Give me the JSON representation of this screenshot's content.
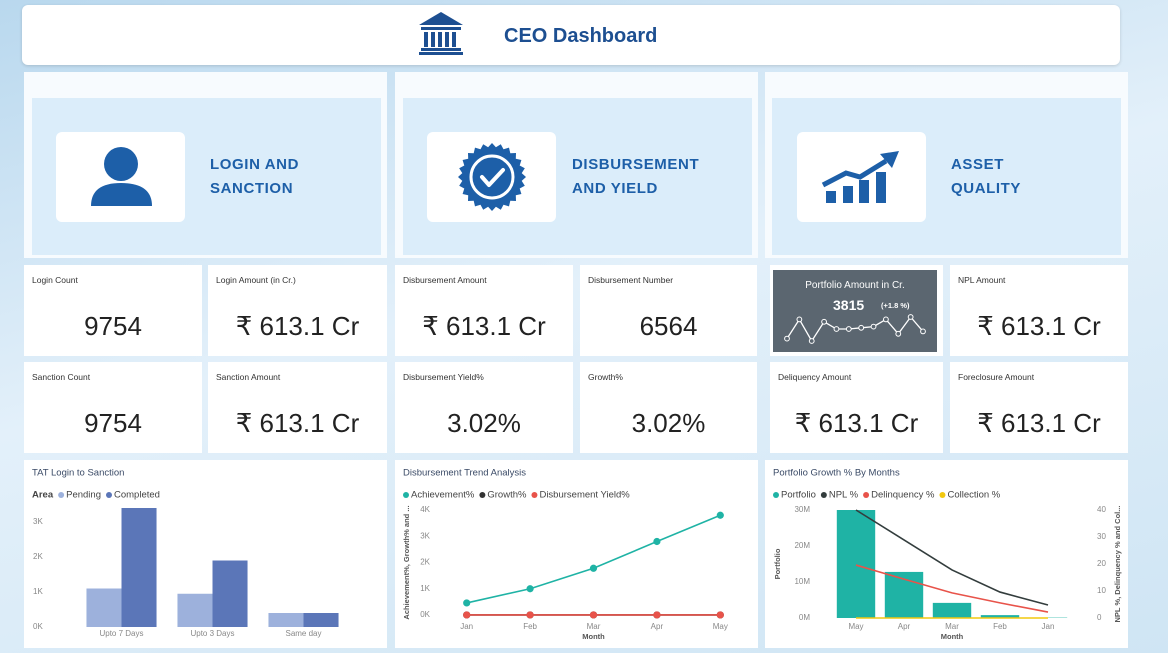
{
  "header": {
    "title": "CEO Dashboard"
  },
  "sections": [
    {
      "label": [
        "LOGIN AND",
        "SANCTION"
      ]
    },
    {
      "label": [
        "DISBURSEMENT",
        "AND YIELD"
      ]
    },
    {
      "label": [
        "ASSET",
        "QUALITY"
      ]
    }
  ],
  "kpis": [
    {
      "title": "Login Count",
      "value": "9754"
    },
    {
      "title": "Login Amount (in Cr.)",
      "value": "₹ 613.1 Cr"
    },
    {
      "title": "Disbursement Amount",
      "value": "₹ 613.1 Cr"
    },
    {
      "title": "Disbursement Number",
      "value": "6564"
    },
    {
      "title": "Portfolio Amount in Cr.",
      "value": "3815",
      "change": "(+1.8 %)",
      "sparkline": [
        1,
        9,
        0,
        8,
        5,
        5,
        5.5,
        6,
        9,
        3,
        10,
        4
      ]
    },
    {
      "title": "NPL Amount",
      "value": "₹ 613.1 Cr"
    },
    {
      "title": "Sanction Count",
      "value": "9754"
    },
    {
      "title": "Sanction Amount",
      "value": "₹ 613.1 Cr"
    },
    {
      "title": "Disbursement Yield%",
      "value": "3.02%"
    },
    {
      "title": "Growth%",
      "value": "3.02%"
    },
    {
      "title": "Deliquency Amount",
      "value": "₹ 613.1 Cr"
    },
    {
      "title": "Foreclosure Amount",
      "value": "₹ 613.1 Cr"
    }
  ],
  "chart_data": [
    {
      "type": "bar",
      "title": "TAT Login to Sanction",
      "legend_title": "Area",
      "grid": false,
      "categories": [
        "Upto 7 Days",
        "Upto 3 Days",
        "Same day"
      ],
      "series": [
        {
          "name": "Pending",
          "color": "#9db1dc",
          "values": [
            1100,
            950,
            400
          ]
        },
        {
          "name": "Completed",
          "color": "#5b76b8",
          "values": [
            3400,
            1900,
            400
          ]
        }
      ],
      "ylim": [
        0,
        3600
      ],
      "yticks": [
        {
          "value": 0,
          "label": "0K"
        },
        {
          "value": 1000,
          "label": "1K"
        },
        {
          "value": 2000,
          "label": "2K"
        },
        {
          "value": 3000,
          "label": "3K"
        }
      ]
    },
    {
      "type": "line",
      "title": "Disbursement Trend Analysis",
      "grid": false,
      "x_label": "Month",
      "y_label": "Achievement%, Growth% and ...",
      "categories": [
        "Jan",
        "Feb",
        "Mar",
        "Apr",
        "May"
      ],
      "series": [
        {
          "name": "Achievement%",
          "color": "#1fb3a5",
          "markers": true,
          "values": [
            460,
            1000,
            1780,
            2800,
            3800
          ]
        },
        {
          "name": "Growth%",
          "color": "#333333",
          "markers": true,
          "values": [
            3.02,
            3.02,
            3.02,
            3.02,
            3.02
          ]
        },
        {
          "name": "Disbursement Yield%",
          "color": "#e8534a",
          "markers": true,
          "values": [
            3.02,
            3.02,
            3.02,
            3.02,
            3.02
          ]
        }
      ],
      "ylim": [
        0,
        4000
      ],
      "yticks": [
        {
          "value": 0,
          "label": "0K"
        },
        {
          "value": 1000,
          "label": "1K"
        },
        {
          "value": 2000,
          "label": "2K"
        },
        {
          "value": 3000,
          "label": "3K"
        },
        {
          "value": 4000,
          "label": "4K"
        }
      ]
    },
    {
      "type": "combo",
      "title": "Portfolio Growth % By Months",
      "grid": false,
      "x_label": "Month",
      "y_label": "Portfolio",
      "y2_label": "NPL %, Delinquency % and Col...",
      "categories": [
        "May",
        "Apr",
        "Mar",
        "Feb",
        "Jan"
      ],
      "series": [
        {
          "name": "Portfolio",
          "type": "bar",
          "color": "#1fb3a5",
          "values": [
            30000000,
            12800000,
            4200000,
            800000,
            100000
          ]
        },
        {
          "name": "NPL %",
          "type": "line",
          "axis": "y2",
          "color": "#333d3d",
          "values": [
            40,
            28.9,
            17.8,
            9.6,
            4.8
          ]
        },
        {
          "name": "Delinquency %",
          "type": "line",
          "axis": "y2",
          "color": "#e8534a",
          "values": [
            19.6,
            14.4,
            9.3,
            5.6,
            2.2
          ]
        },
        {
          "name": "Collection %",
          "type": "line",
          "axis": "y2",
          "color": "#f2c80f",
          "values": [
            0,
            0,
            0,
            0,
            0
          ]
        }
      ],
      "ylim": [
        0,
        30000000
      ],
      "yticks": [
        {
          "value": 0,
          "label": "0M"
        },
        {
          "value": 10000000,
          "label": "10M"
        },
        {
          "value": 20000000,
          "label": "20M"
        },
        {
          "value": 30000000,
          "label": "30M"
        }
      ],
      "y2lim": [
        0,
        40
      ],
      "y2ticks": [
        0,
        10,
        20,
        30,
        40
      ]
    }
  ]
}
